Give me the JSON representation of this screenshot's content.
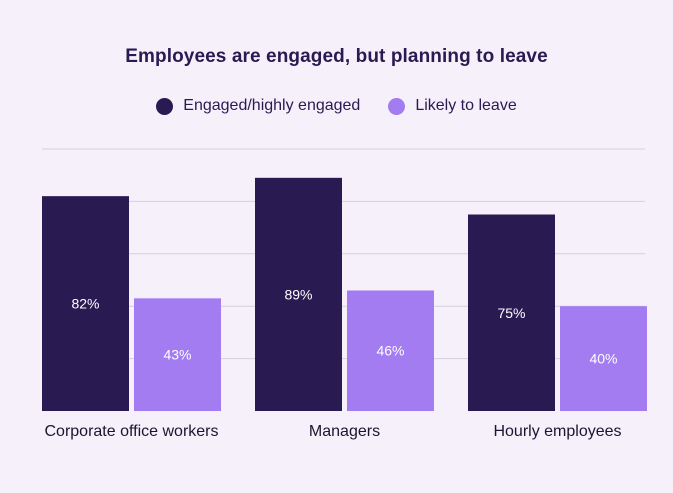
{
  "colors": {
    "background": "#f6f0fb",
    "engaged": "#2a1a52",
    "leave": "#a27cf0",
    "grid": "#d6cfe0"
  },
  "chart_data": {
    "type": "bar",
    "title": "Employees are engaged, but planning to leave",
    "categories": [
      "Corporate office workers",
      "Managers",
      "Hourly employees"
    ],
    "series": [
      {
        "name": "Engaged/highly engaged",
        "values": [
          82,
          89,
          75
        ],
        "labels": [
          "82%",
          "89%",
          "75%"
        ]
      },
      {
        "name": "Likely to leave",
        "values": [
          43,
          46,
          40
        ],
        "labels": [
          "43%",
          "46%",
          "40%"
        ]
      }
    ],
    "ylim": [
      0,
      100
    ],
    "grid": true,
    "legend": "top-center",
    "xlabel": "",
    "ylabel": ""
  }
}
